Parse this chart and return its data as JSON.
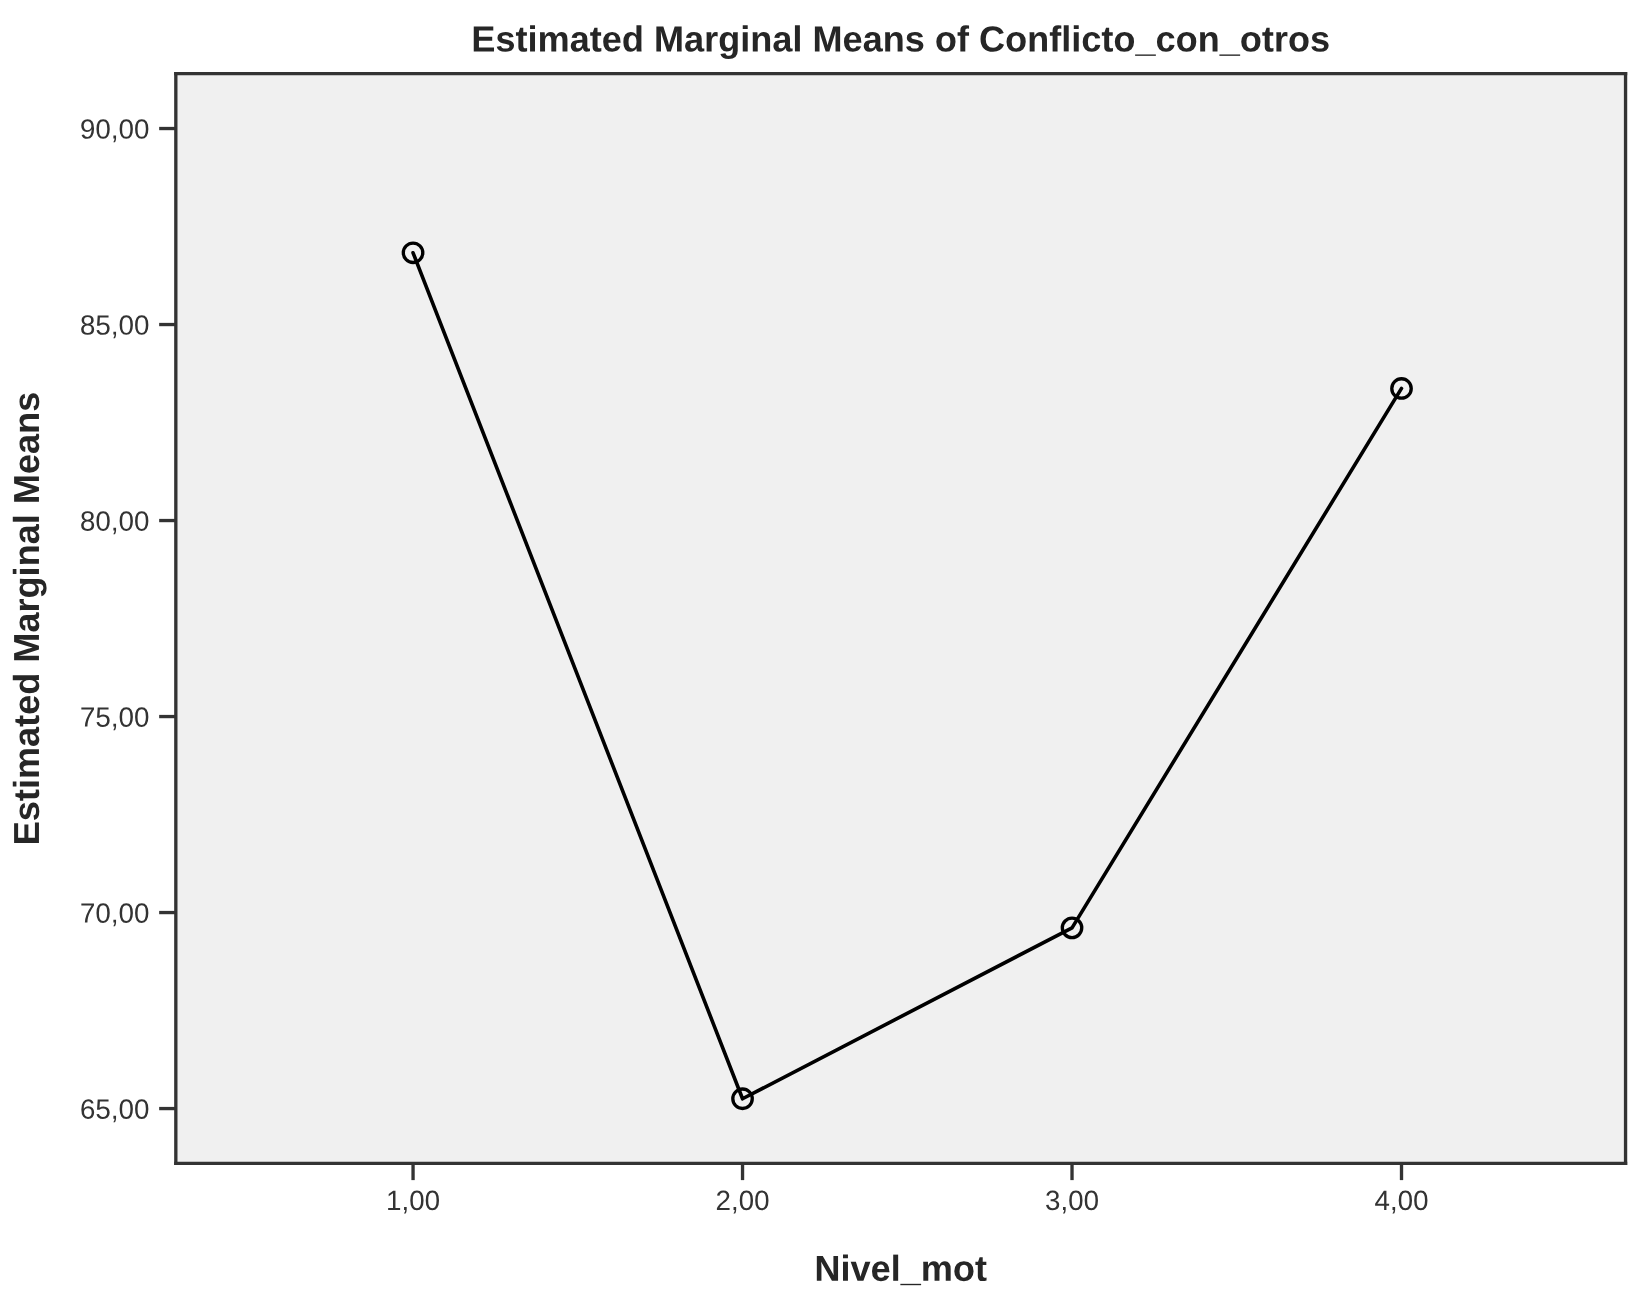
{
  "chart_data": {
    "type": "line",
    "title": "Estimated Marginal Means of Conflicto_con_otros",
    "xlabel": "Nivel_mot",
    "ylabel": "Estimated Marginal Means",
    "x": [
      1,
      2,
      3,
      4
    ],
    "series": [
      {
        "color": "#000000",
        "values": [
          86.83,
          65.25,
          69.61,
          83.37
        ]
      }
    ],
    "marker": "circle",
    "line_style": "solid",
    "grid": false,
    "xlim": [
      0.28,
      4.68
    ],
    "xticks": [
      {
        "value": 1,
        "label": "1,00"
      },
      {
        "value": 2,
        "label": "2,00"
      },
      {
        "value": 3,
        "label": "3,00"
      },
      {
        "value": 4,
        "label": "4,00"
      }
    ],
    "ylim": [
      63.6,
      91.4
    ],
    "yticks": [
      {
        "value": 65,
        "label": "65,00"
      },
      {
        "value": 70,
        "label": "70,00"
      },
      {
        "value": 75,
        "label": "75,00"
      },
      {
        "value": 80,
        "label": "80,00"
      },
      {
        "value": 85,
        "label": "85,00"
      },
      {
        "value": 90,
        "label": "90,00"
      }
    ]
  }
}
